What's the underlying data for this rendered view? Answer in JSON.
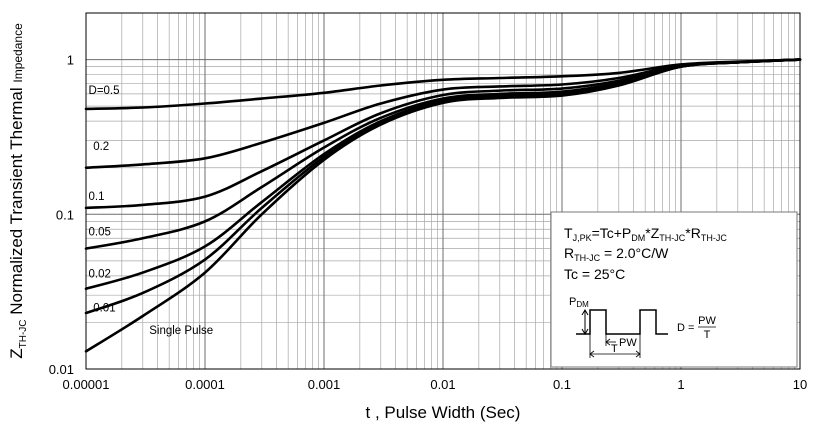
{
  "chart_data": {
    "type": "line",
    "xscale": "log",
    "yscale": "log",
    "xlim": [
      1e-05,
      10
    ],
    "ylim": [
      0.01,
      2
    ],
    "grid": true,
    "xlabel": "t , Pulse Width (Sec)",
    "ylabel": {
      "sym": "Z",
      "sub": "TH-JC",
      "main": " Normalized Transient Thermal ",
      "small": "Impedance"
    },
    "xticks": [
      {
        "v": 1e-05,
        "label": "0.00001"
      },
      {
        "v": 0.0001,
        "label": "0.0001"
      },
      {
        "v": 0.001,
        "label": "0.001"
      },
      {
        "v": 0.01,
        "label": "0.01"
      },
      {
        "v": 0.1,
        "label": "0.1"
      },
      {
        "v": 1,
        "label": "1"
      },
      {
        "v": 10,
        "label": "10"
      }
    ],
    "yticks": [
      {
        "v": 0.01,
        "label": "0.01"
      },
      {
        "v": 0.1,
        "label": "0.1"
      },
      {
        "v": 1,
        "label": "1"
      }
    ],
    "series": [
      {
        "name": "D=0.5",
        "label_at": [
          1.05e-05,
          0.6
        ],
        "points": [
          [
            1e-05,
            0.48
          ],
          [
            3e-05,
            0.49
          ],
          [
            0.0001,
            0.52
          ],
          [
            0.0003,
            0.56
          ],
          [
            0.001,
            0.61
          ],
          [
            0.003,
            0.68
          ],
          [
            0.01,
            0.74
          ],
          [
            0.03,
            0.76
          ],
          [
            0.1,
            0.78
          ],
          [
            0.3,
            0.82
          ],
          [
            1,
            0.93
          ],
          [
            3,
            0.97
          ],
          [
            10,
            1.0
          ]
        ]
      },
      {
        "name": "0.2",
        "label_at": [
          1.15e-05,
          0.26
        ],
        "points": [
          [
            1e-05,
            0.2
          ],
          [
            3e-05,
            0.21
          ],
          [
            0.0001,
            0.23
          ],
          [
            0.0003,
            0.29
          ],
          [
            0.001,
            0.39
          ],
          [
            0.003,
            0.52
          ],
          [
            0.01,
            0.64
          ],
          [
            0.03,
            0.67
          ],
          [
            0.1,
            0.69
          ],
          [
            0.3,
            0.76
          ],
          [
            1,
            0.92
          ],
          [
            3,
            0.96
          ],
          [
            10,
            1.0
          ]
        ]
      },
      {
        "name": "0.1",
        "label_at": [
          1.05e-05,
          0.124
        ],
        "points": [
          [
            1e-05,
            0.11
          ],
          [
            3e-05,
            0.115
          ],
          [
            0.0001,
            0.13
          ],
          [
            0.0003,
            0.19
          ],
          [
            0.001,
            0.3
          ],
          [
            0.003,
            0.45
          ],
          [
            0.01,
            0.59
          ],
          [
            0.03,
            0.63
          ],
          [
            0.1,
            0.65
          ],
          [
            0.3,
            0.73
          ],
          [
            1,
            0.91
          ],
          [
            3,
            0.96
          ],
          [
            10,
            1.0
          ]
        ]
      },
      {
        "name": "0.05",
        "label_at": [
          1.05e-05,
          0.073
        ],
        "points": [
          [
            1e-05,
            0.06
          ],
          [
            3e-05,
            0.07
          ],
          [
            0.0001,
            0.09
          ],
          [
            0.0003,
            0.15
          ],
          [
            0.001,
            0.27
          ],
          [
            0.003,
            0.42
          ],
          [
            0.01,
            0.56
          ],
          [
            0.03,
            0.6
          ],
          [
            0.1,
            0.62
          ],
          [
            0.3,
            0.71
          ],
          [
            1,
            0.91
          ],
          [
            3,
            0.96
          ],
          [
            10,
            1.0
          ]
        ]
      },
      {
        "name": "0.02",
        "label_at": [
          1.05e-05,
          0.039
        ],
        "points": [
          [
            1e-05,
            0.033
          ],
          [
            3e-05,
            0.042
          ],
          [
            0.0001,
            0.062
          ],
          [
            0.0003,
            0.12
          ],
          [
            0.001,
            0.245
          ],
          [
            0.003,
            0.4
          ],
          [
            0.01,
            0.545
          ],
          [
            0.03,
            0.585
          ],
          [
            0.1,
            0.605
          ],
          [
            0.3,
            0.7
          ],
          [
            1,
            0.9
          ],
          [
            3,
            0.96
          ],
          [
            10,
            1.0
          ]
        ]
      },
      {
        "name": "0.01",
        "label_at": [
          1.15e-05,
          0.0235
        ],
        "points": [
          [
            1e-05,
            0.023
          ],
          [
            3e-05,
            0.031
          ],
          [
            0.0001,
            0.051
          ],
          [
            0.0003,
            0.11
          ],
          [
            0.001,
            0.235
          ],
          [
            0.003,
            0.39
          ],
          [
            0.01,
            0.535
          ],
          [
            0.03,
            0.575
          ],
          [
            0.1,
            0.595
          ],
          [
            0.3,
            0.69
          ],
          [
            1,
            0.9
          ],
          [
            3,
            0.96
          ],
          [
            10,
            1.0
          ]
        ]
      },
      {
        "name": "Single Pulse",
        "label_at": [
          3.4e-05,
          0.0168
        ],
        "points": [
          [
            1e-05,
            0.013
          ],
          [
            3e-05,
            0.022
          ],
          [
            0.0001,
            0.042
          ],
          [
            0.0003,
            0.1
          ],
          [
            0.001,
            0.225
          ],
          [
            0.003,
            0.38
          ],
          [
            0.01,
            0.525
          ],
          [
            0.03,
            0.565
          ],
          [
            0.1,
            0.585
          ],
          [
            0.3,
            0.68
          ],
          [
            1,
            0.9
          ],
          [
            3,
            0.96
          ],
          [
            10,
            1.0
          ]
        ]
      }
    ],
    "annotation": {
      "line1": {
        "a": "T",
        "a_sub": "J,PK",
        "b": "=Tc+P",
        "b_sub": "DM",
        "c": "*Z",
        "c_sub": "TH-JC",
        "d": "*R",
        "d_sub": "TH-JC"
      },
      "line2": {
        "a": "R",
        "a_sub": "TH-JC",
        "b": " = 2.0°C/W"
      },
      "line3": "Tc = 25°C",
      "pdm": "P",
      "pdm_sub": "DM",
      "pw": "PW",
      "period": "T",
      "formula_lhs": "D =",
      "formula_num": "PW",
      "formula_den": "T"
    }
  }
}
